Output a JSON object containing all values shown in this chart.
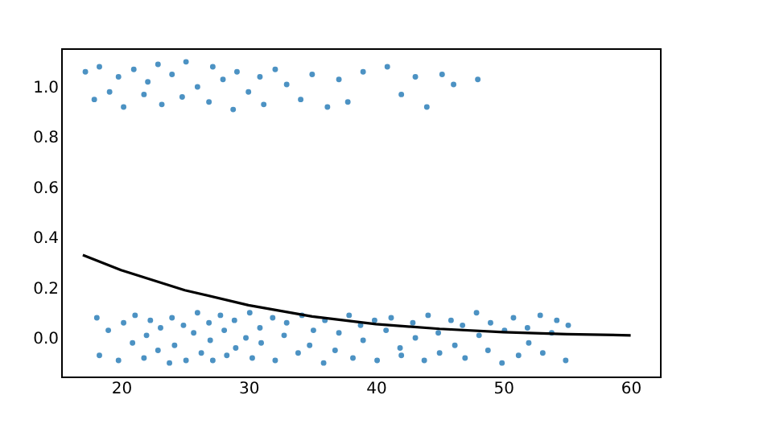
{
  "chart_data": {
    "type": "scatter",
    "xlim": [
      15.3,
      62.3
    ],
    "ylim": [
      -0.154,
      1.154
    ],
    "xticks": [
      20,
      30,
      40,
      50,
      60
    ],
    "yticks": [
      {
        "value": 0,
        "label": "0.0"
      },
      {
        "value": 0.2,
        "label": "0.2"
      },
      {
        "value": 0.4,
        "label": "0.4"
      },
      {
        "value": 0.6,
        "label": "0.6"
      },
      {
        "value": 0.8,
        "label": "0.8"
      },
      {
        "value": 1,
        "label": "1.0"
      }
    ],
    "grid": false,
    "marker": "circle",
    "series": [
      {
        "color": "#1f77b4",
        "x": [
          18.1,
          18.3,
          19.0,
          19.8,
          20.2,
          20.9,
          21.1,
          21.8,
          22.0,
          22.3,
          22.9,
          23.1,
          23.8,
          24.0,
          24.2,
          24.9,
          25.1,
          25.7,
          26.0,
          26.3,
          26.9,
          27.0,
          27.2,
          27.8,
          28.1,
          28.3,
          28.9,
          29.0,
          29.8,
          30.1,
          30.3,
          30.9,
          31.0,
          31.9,
          32.1,
          32.8,
          33.0,
          33.9,
          34.2,
          34.8,
          35.1,
          35.9,
          36.0,
          36.8,
          37.1,
          37.9,
          38.2,
          38.8,
          39.0,
          39.9,
          40.1,
          40.8,
          41.2,
          41.9,
          42.0,
          42.9,
          43.1,
          43.8,
          44.1,
          44.9,
          45.0,
          45.9,
          46.2,
          46.8,
          47.0,
          47.9,
          48.1,
          48.8,
          49.0,
          49.9,
          50.1,
          50.8,
          51.2,
          51.9,
          52.0,
          52.9,
          53.1,
          53.8,
          54.2,
          54.9,
          55.1
        ],
        "values": [
          0.08,
          -0.07,
          0.03,
          -0.09,
          0.06,
          -0.02,
          0.09,
          -0.08,
          0.01,
          0.07,
          -0.05,
          0.04,
          -0.1,
          0.08,
          -0.03,
          0.05,
          -0.09,
          0.02,
          0.1,
          -0.06,
          0.06,
          -0.01,
          -0.09,
          0.09,
          0.03,
          -0.07,
          0.07,
          -0.04,
          0.0,
          0.1,
          -0.08,
          0.04,
          -0.02,
          0.08,
          -0.09,
          0.01,
          0.06,
          -0.06,
          0.09,
          -0.03,
          0.03,
          -0.1,
          0.07,
          -0.05,
          0.02,
          0.09,
          -0.08,
          0.05,
          -0.01,
          0.07,
          -0.09,
          0.03,
          0.08,
          -0.04,
          -0.07,
          0.06,
          0.0,
          -0.09,
          0.09,
          0.02,
          -0.06,
          0.07,
          -0.03,
          0.05,
          -0.08,
          0.1,
          0.01,
          -0.05,
          0.06,
          -0.1,
          0.03,
          0.08,
          -0.07,
          0.04,
          -0.02,
          0.09,
          -0.06,
          0.02,
          0.07,
          -0.09,
          0.05
        ]
      },
      {
        "color": "#1f77b4",
        "x": [
          17.2,
          17.9,
          18.3,
          19.1,
          19.8,
          20.2,
          21.0,
          21.8,
          22.1,
          22.9,
          23.2,
          24.0,
          24.8,
          25.1,
          26.0,
          26.9,
          27.2,
          28.0,
          28.8,
          29.1,
          30.0,
          30.9,
          31.2,
          32.1,
          33.0,
          34.1,
          35.0,
          36.2,
          37.1,
          37.8,
          39.0,
          40.9,
          42.0,
          43.1,
          44.0,
          45.2,
          46.1,
          48.0
        ],
        "values": [
          1.06,
          0.95,
          1.08,
          0.98,
          1.04,
          0.92,
          1.07,
          0.97,
          1.02,
          1.09,
          0.93,
          1.05,
          0.96,
          1.1,
          1.0,
          0.94,
          1.08,
          1.03,
          0.91,
          1.06,
          0.98,
          1.04,
          0.93,
          1.07,
          1.01,
          0.95,
          1.05,
          0.92,
          1.03,
          0.94,
          1.06,
          1.08,
          0.97,
          1.04,
          0.92,
          1.05,
          1.01,
          1.03
        ]
      },
      {
        "type": "line",
        "color": "#000000",
        "line_style": "solid",
        "marker": "none",
        "x": [
          17,
          20,
          25,
          30,
          35,
          40,
          45,
          50,
          55,
          60
        ],
        "values": [
          0.33,
          0.27,
          0.19,
          0.13,
          0.085,
          0.055,
          0.036,
          0.023,
          0.015,
          0.01
        ]
      }
    ]
  }
}
